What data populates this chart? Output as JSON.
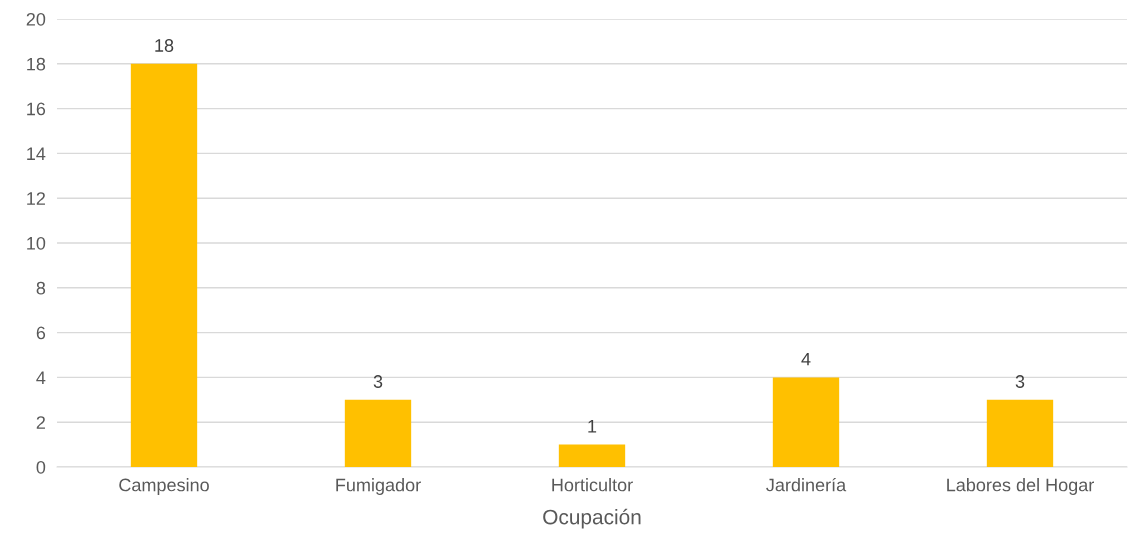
{
  "chart_data": {
    "type": "bar",
    "xlabel": "Ocupación",
    "categories": [
      "Campesino",
      "Fumigador",
      "Horticultor",
      "Jardinería",
      "Labores del Hogar"
    ],
    "values": [
      18,
      3,
      1,
      4,
      3
    ],
    "color": "#ffc000",
    "ylim": [
      0,
      20
    ],
    "yticks": [
      0,
      2,
      4,
      6,
      8,
      10,
      12,
      14,
      16,
      18,
      20
    ],
    "grid": "y",
    "data_labels": true
  }
}
